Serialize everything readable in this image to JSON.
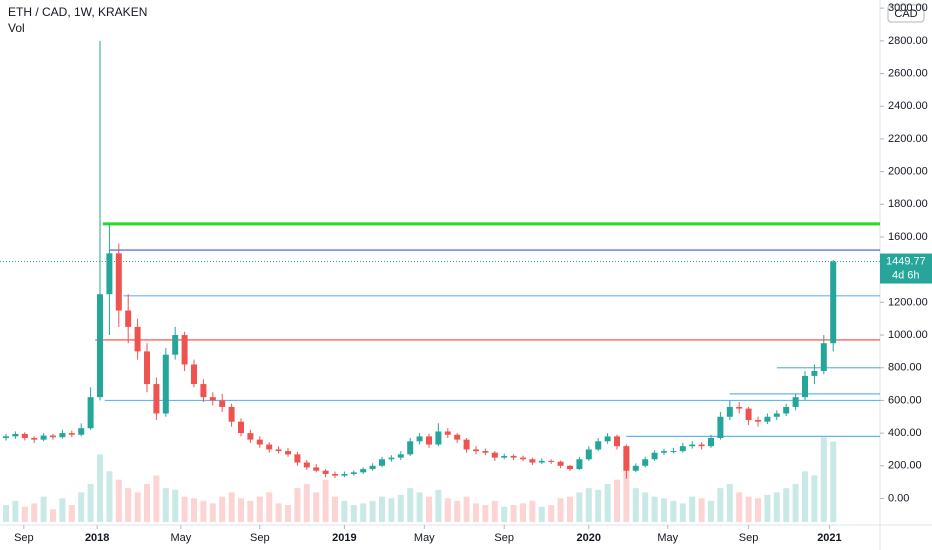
{
  "chart_data": {
    "type": "candlestick",
    "title": "ETH / CAD, 1W, KRAKEN",
    "volume_label": "Vol",
    "currency": "CAD",
    "last_price": 1449.77,
    "countdown": "4d 6h",
    "ylim": [
      -150,
      3050
    ],
    "yticks": [
      {
        "value": 0,
        "label": "0.00"
      },
      {
        "value": 200,
        "label": "200.00"
      },
      {
        "value": 400,
        "label": "400.00"
      },
      {
        "value": 600,
        "label": "600.00"
      },
      {
        "value": 800,
        "label": "800.00"
      },
      {
        "value": 1000,
        "label": "1000.00"
      },
      {
        "value": 1200,
        "label": "1200.00"
      },
      {
        "value": 1400,
        "label": "1400.00"
      },
      {
        "value": 1600,
        "label": "1600.00"
      },
      {
        "value": 1800,
        "label": "1800.00"
      },
      {
        "value": 2000,
        "label": "2000.00"
      },
      {
        "value": 2200,
        "label": "2200.00"
      },
      {
        "value": 2400,
        "label": "2400.00"
      },
      {
        "value": 2600,
        "label": "2600.00"
      },
      {
        "value": 2800,
        "label": "2800.00"
      },
      {
        "value": 3000,
        "label": "3000.00"
      }
    ],
    "xticks": [
      {
        "value": 1.9,
        "label": "Sep"
      },
      {
        "value": 9.7,
        "label": "2018"
      },
      {
        "value": 18.6,
        "label": "May"
      },
      {
        "value": 27,
        "label": "Sep"
      },
      {
        "value": 36,
        "label": "2019"
      },
      {
        "value": 44.5,
        "label": "May"
      },
      {
        "value": 53,
        "label": "Sep"
      },
      {
        "value": 62,
        "label": "2020"
      },
      {
        "value": 70.4,
        "label": "May"
      },
      {
        "value": 79,
        "label": "Sep"
      },
      {
        "value": 87.6,
        "label": "2021"
      }
    ],
    "up_color": "#26a69a",
    "down_color": "#ef5350",
    "candles": [
      [
        370,
        395,
        355,
        380
      ],
      [
        380,
        410,
        365,
        395
      ],
      [
        395,
        405,
        355,
        370
      ],
      [
        370,
        380,
        340,
        360
      ],
      [
        360,
        400,
        350,
        385
      ],
      [
        385,
        395,
        360,
        375
      ],
      [
        375,
        420,
        365,
        400
      ],
      [
        400,
        415,
        375,
        390
      ],
      [
        390,
        460,
        380,
        430
      ],
      [
        430,
        680,
        420,
        620
      ],
      [
        620,
        2800,
        600,
        1250
      ],
      [
        1250,
        1680,
        1000,
        1500
      ],
      [
        1500,
        1560,
        1050,
        1150
      ],
      [
        1150,
        1250,
        950,
        1050
      ],
      [
        1050,
        1100,
        850,
        900
      ],
      [
        900,
        950,
        650,
        700
      ],
      [
        700,
        740,
        480,
        520
      ],
      [
        520,
        920,
        500,
        880
      ],
      [
        880,
        1050,
        850,
        1000
      ],
      [
        1000,
        1020,
        780,
        820
      ],
      [
        820,
        850,
        680,
        700
      ],
      [
        700,
        730,
        590,
        620
      ],
      [
        620,
        650,
        570,
        600
      ],
      [
        600,
        640,
        530,
        560
      ],
      [
        560,
        580,
        440,
        470
      ],
      [
        470,
        490,
        380,
        400
      ],
      [
        400,
        420,
        340,
        360
      ],
      [
        360,
        380,
        310,
        330
      ],
      [
        330,
        345,
        280,
        300
      ],
      [
        300,
        320,
        275,
        290
      ],
      [
        290,
        310,
        255,
        270
      ],
      [
        270,
        285,
        200,
        220
      ],
      [
        220,
        235,
        175,
        190
      ],
      [
        190,
        210,
        160,
        170
      ],
      [
        170,
        180,
        130,
        150
      ],
      [
        150,
        165,
        125,
        140
      ],
      [
        140,
        165,
        130,
        150
      ],
      [
        150,
        172,
        140,
        160
      ],
      [
        160,
        190,
        150,
        180
      ],
      [
        180,
        215,
        170,
        200
      ],
      [
        200,
        255,
        190,
        240
      ],
      [
        240,
        265,
        225,
        250
      ],
      [
        250,
        290,
        235,
        270
      ],
      [
        270,
        370,
        260,
        350
      ],
      [
        350,
        400,
        330,
        380
      ],
      [
        380,
        395,
        310,
        330
      ],
      [
        330,
        460,
        320,
        410
      ],
      [
        410,
        430,
        370,
        390
      ],
      [
        390,
        400,
        340,
        360
      ],
      [
        360,
        370,
        280,
        300
      ],
      [
        300,
        320,
        270,
        290
      ],
      [
        290,
        305,
        265,
        280
      ],
      [
        280,
        290,
        230,
        250
      ],
      [
        250,
        275,
        240,
        260
      ],
      [
        260,
        270,
        235,
        250
      ],
      [
        250,
        262,
        228,
        240
      ],
      [
        240,
        250,
        205,
        220
      ],
      [
        220,
        245,
        210,
        230
      ],
      [
        230,
        240,
        212,
        225
      ],
      [
        225,
        232,
        185,
        200
      ],
      [
        200,
        205,
        168,
        180
      ],
      [
        180,
        255,
        175,
        240
      ],
      [
        240,
        320,
        230,
        300
      ],
      [
        300,
        370,
        290,
        350
      ],
      [
        350,
        400,
        335,
        380
      ],
      [
        380,
        390,
        300,
        320
      ],
      [
        320,
        330,
        120,
        170
      ],
      [
        170,
        215,
        160,
        200
      ],
      [
        200,
        255,
        190,
        240
      ],
      [
        240,
        295,
        230,
        280
      ],
      [
        280,
        305,
        265,
        290
      ],
      [
        290,
        310,
        275,
        290
      ],
      [
        290,
        340,
        280,
        320
      ],
      [
        320,
        350,
        305,
        330
      ],
      [
        330,
        345,
        300,
        320
      ],
      [
        320,
        390,
        310,
        370
      ],
      [
        370,
        530,
        360,
        500
      ],
      [
        500,
        600,
        480,
        560
      ],
      [
        560,
        590,
        520,
        550
      ],
      [
        550,
        560,
        450,
        480
      ],
      [
        480,
        500,
        440,
        470
      ],
      [
        470,
        520,
        455,
        500
      ],
      [
        500,
        540,
        480,
        520
      ],
      [
        520,
        580,
        505,
        560
      ],
      [
        560,
        640,
        540,
        620
      ],
      [
        620,
        780,
        600,
        750
      ],
      [
        750,
        820,
        700,
        780
      ],
      [
        780,
        1000,
        760,
        950
      ],
      [
        950,
        1460,
        900,
        1449.77
      ]
    ],
    "volumes": [
      20,
      25,
      18,
      22,
      30,
      15,
      28,
      20,
      35,
      45,
      80,
      60,
      50,
      40,
      35,
      45,
      55,
      40,
      38,
      30,
      28,
      25,
      22,
      30,
      35,
      28,
      25,
      30,
      35,
      22,
      20,
      40,
      45,
      35,
      50,
      30,
      25,
      20,
      22,
      25,
      30,
      28,
      32,
      40,
      35,
      30,
      38,
      28,
      25,
      30,
      22,
      20,
      25,
      18,
      20,
      22,
      25,
      18,
      20,
      28,
      30,
      35,
      40,
      38,
      45,
      50,
      90,
      40,
      35,
      30,
      28,
      25,
      22,
      30,
      28,
      25,
      40,
      45,
      35,
      30,
      28,
      32,
      35,
      40,
      45,
      60,
      55,
      100,
      95
    ],
    "vlim": [
      0,
      130
    ],
    "hlines": [
      {
        "value": 1680,
        "color": "#22dd22",
        "from": 10.3
      },
      {
        "value": 1520,
        "color": "#3f51f5",
        "from": 11
      },
      {
        "value": 1240,
        "color": "#64b5f6",
        "from": 12.5
      },
      {
        "value": 970,
        "color": "#f44336",
        "from": 9.5
      },
      {
        "value": 600,
        "color": "#64b5f6",
        "from": 10.5
      },
      {
        "value": 380,
        "color": "#64b5f6",
        "from": 66
      },
      {
        "value": 800,
        "color": "#64b5f6",
        "from": 82
      },
      {
        "value": 640,
        "color": "#64b5f6",
        "from": 77
      }
    ]
  }
}
